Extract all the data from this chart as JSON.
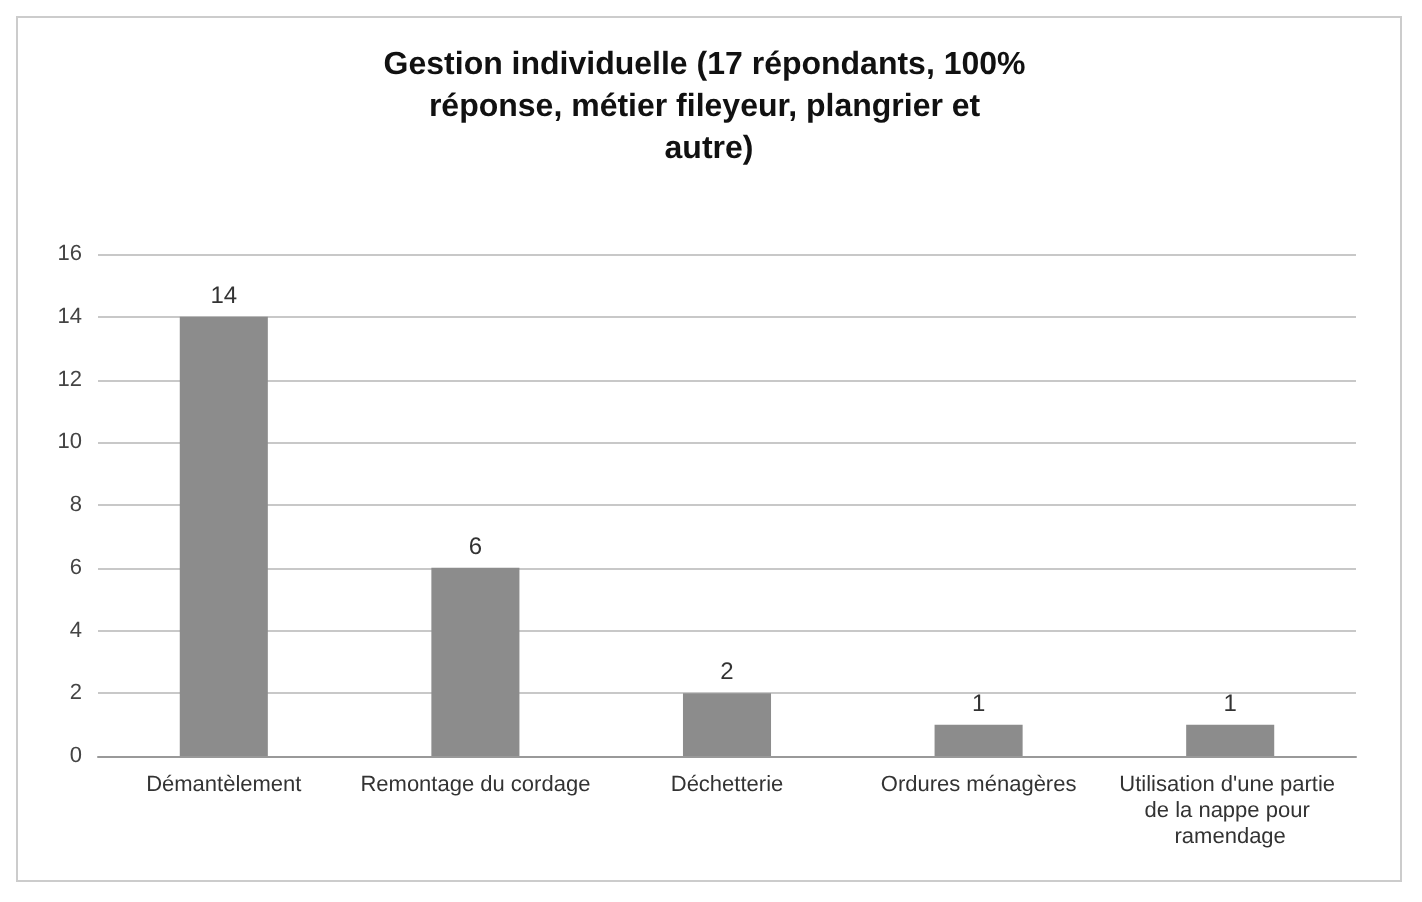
{
  "chart_data": {
    "type": "bar",
    "title": "Gestion individuelle (17 répondants, 100% réponse, métier fileyeur, plangrier et autre)",
    "categories": [
      "Démantèlement",
      "Remontage du cordage",
      "Déchetterie",
      "Ordures ménagères",
      "Utilisation d'une partie de la nappe pour ramendage"
    ],
    "values": [
      14,
      6,
      2,
      1,
      1
    ],
    "color": "#8c8c8c",
    "ylim": [
      0,
      16
    ],
    "yticks": [
      0,
      2,
      4,
      6,
      8,
      10,
      12,
      14,
      16
    ],
    "grid": "y",
    "data_labels": true
  }
}
